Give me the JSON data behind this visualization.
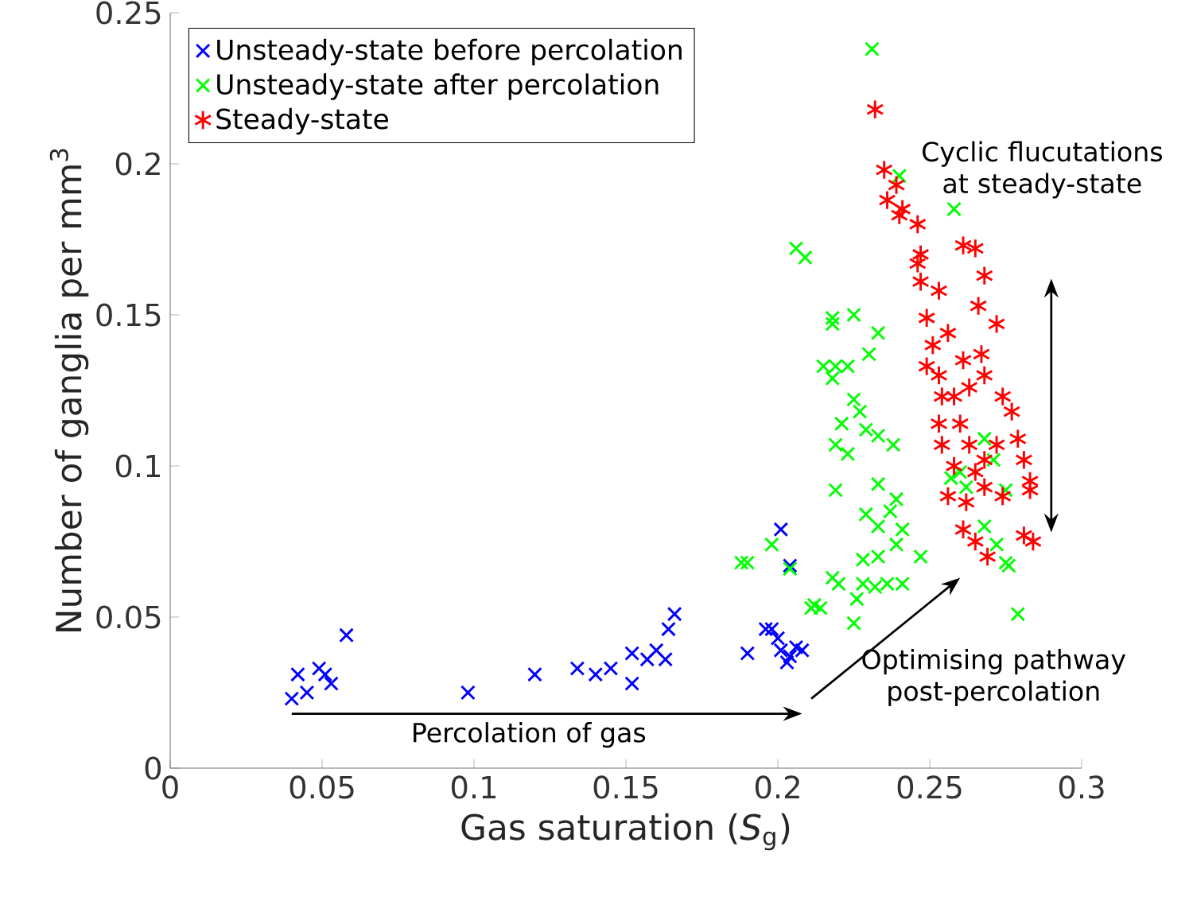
{
  "chart_data": {
    "type": "scatter",
    "xlabel": "Gas saturation (*S*$_{g}$)",
    "ylabel": "Number of ganglia per mm$^{3}$",
    "xlim": [
      0,
      0.3
    ],
    "ylim": [
      0,
      0.25
    ],
    "xticks": [
      0,
      0.05,
      0.1,
      0.15,
      0.2,
      0.25,
      0.3
    ],
    "yticks": [
      0,
      0.05,
      0.1,
      0.15,
      0.2,
      0.25
    ],
    "grid": false,
    "legend": "top left",
    "annotations": [
      "Percolation of gas",
      "Optimising pathway post-percolation",
      "Cyclic flucutations at steady-state"
    ],
    "series": [
      {
        "name": "Unsteady-state before percolation",
        "color": "#0000ff",
        "marker": "cross",
        "x": [
          0.04,
          0.042,
          0.045,
          0.049,
          0.051,
          0.053,
          0.058,
          0.098,
          0.12,
          0.134,
          0.14,
          0.145,
          0.152,
          0.152,
          0.157,
          0.16,
          0.163,
          0.164,
          0.166,
          0.19,
          0.196,
          0.198,
          0.201,
          0.2,
          0.201,
          0.204,
          0.204,
          0.206,
          0.208,
          0.203
        ],
        "values": [
          0.023,
          0.031,
          0.025,
          0.033,
          0.031,
          0.028,
          0.044,
          0.025,
          0.031,
          0.033,
          0.031,
          0.033,
          0.028,
          0.038,
          0.036,
          0.039,
          0.036,
          0.046,
          0.051,
          0.038,
          0.046,
          0.046,
          0.079,
          0.043,
          0.039,
          0.067,
          0.037,
          0.04,
          0.039,
          0.035
        ]
      },
      {
        "name": "Unsteady-state after percolation",
        "color": "#00ff00",
        "marker": "cross",
        "x": [
          0.206,
          0.209,
          0.218,
          0.225,
          0.218,
          0.233,
          0.23,
          0.215,
          0.219,
          0.223,
          0.218,
          0.225,
          0.227,
          0.221,
          0.229,
          0.233,
          0.238,
          0.219,
          0.223,
          0.219,
          0.233,
          0.239,
          0.237,
          0.229,
          0.241,
          0.233,
          0.198,
          0.188,
          0.19,
          0.204,
          0.228,
          0.233,
          0.239,
          0.247,
          0.218,
          0.22,
          0.228,
          0.232,
          0.236,
          0.241,
          0.226,
          0.211,
          0.214,
          0.212,
          0.225,
          0.268,
          0.257,
          0.262,
          0.271,
          0.275,
          0.268,
          0.275,
          0.276,
          0.279,
          0.26,
          0.272,
          0.231,
          0.258,
          0.24
        ],
        "values": [
          0.172,
          0.169,
          0.149,
          0.15,
          0.147,
          0.144,
          0.137,
          0.133,
          0.133,
          0.133,
          0.129,
          0.122,
          0.118,
          0.114,
          0.112,
          0.11,
          0.107,
          0.107,
          0.104,
          0.092,
          0.094,
          0.089,
          0.085,
          0.084,
          0.079,
          0.08,
          0.074,
          0.068,
          0.068,
          0.066,
          0.069,
          0.07,
          0.074,
          0.07,
          0.063,
          0.061,
          0.061,
          0.06,
          0.061,
          0.061,
          0.056,
          0.053,
          0.053,
          0.054,
          0.048,
          0.109,
          0.096,
          0.093,
          0.102,
          0.092,
          0.08,
          0.068,
          0.067,
          0.051,
          0.098,
          0.074,
          0.238,
          0.185,
          0.196
        ]
      },
      {
        "name": "Steady-state",
        "color": "#ff0000",
        "x": [
          0.232,
          0.235,
          0.239,
          0.236,
          0.241,
          0.246,
          0.24,
          0.261,
          0.265,
          0.268,
          0.266,
          0.272,
          0.247,
          0.247,
          0.249,
          0.251,
          0.253,
          0.249,
          0.254,
          0.253,
          0.254,
          0.258,
          0.256,
          0.261,
          0.265,
          0.269,
          0.267,
          0.261,
          0.263,
          0.268,
          0.274,
          0.277,
          0.279,
          0.281,
          0.283,
          0.283,
          0.272,
          0.268,
          0.258,
          0.26,
          0.263,
          0.265,
          0.268,
          0.274,
          0.281,
          0.284,
          0.262,
          0.246,
          0.253,
          0.256
        ],
        "values": [
          0.218,
          0.198,
          0.193,
          0.188,
          0.185,
          0.18,
          0.183,
          0.173,
          0.172,
          0.163,
          0.153,
          0.147,
          0.17,
          0.161,
          0.149,
          0.14,
          0.13,
          0.133,
          0.123,
          0.114,
          0.107,
          0.1,
          0.09,
          0.079,
          0.075,
          0.07,
          0.137,
          0.135,
          0.126,
          0.13,
          0.123,
          0.118,
          0.109,
          0.102,
          0.095,
          0.092,
          0.107,
          0.102,
          0.123,
          0.114,
          0.107,
          0.098,
          0.093,
          0.09,
          0.077,
          0.075,
          0.088,
          0.167,
          0.158,
          0.144
        ]
      }
    ]
  }
}
